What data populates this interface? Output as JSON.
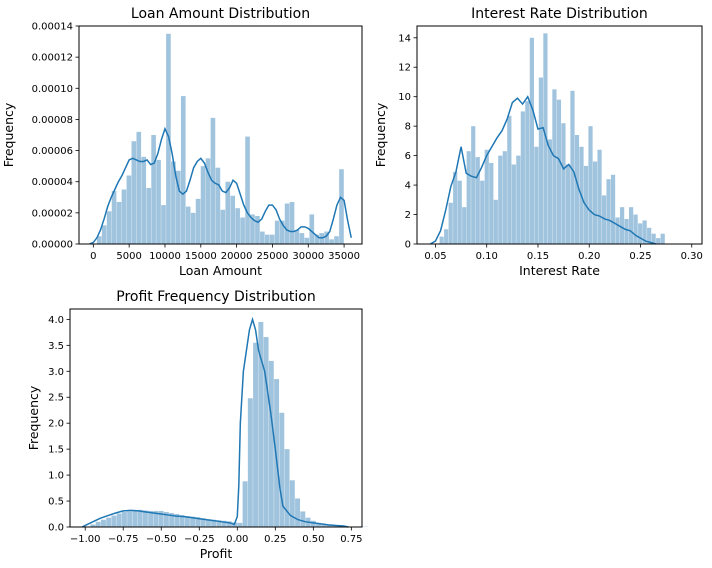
{
  "figure": {
    "background": "#ffffff",
    "hist_color": "#a1c4de",
    "kde_color": "#1f77b4",
    "axes_color": "#000000"
  },
  "chart_data": [
    {
      "type": "bar",
      "title": "Loan Amount Distribution",
      "xlabel": "Loan Amount",
      "ylabel": "Frequency",
      "xlim": [
        -2000,
        37500
      ],
      "ylim": [
        0,
        0.00014
      ],
      "xticks": [
        0,
        5000,
        10000,
        15000,
        20000,
        25000,
        30000,
        35000
      ],
      "xtick_labels": [
        "0",
        "5000",
        "10000",
        "15000",
        "20000",
        "25000",
        "30000",
        "35000"
      ],
      "yticks": [
        0,
        2e-05,
        4e-05,
        6e-05,
        8e-05,
        0.0001,
        0.00012,
        0.00014
      ],
      "ytick_labels": [
        "0.00000",
        "0.00002",
        "0.00004",
        "0.00006",
        "0.00008",
        "0.00010",
        "0.00012",
        "0.00014"
      ],
      "grid": false,
      "hist": {
        "x_start": 500,
        "bin_width": 690,
        "values": [
          5e-06,
          1.2e-05,
          2.1e-05,
          3.4e-05,
          2.7e-05,
          3.5e-05,
          4.4e-05,
          6.6e-05,
          7.2e-05,
          5.6e-05,
          3.6e-05,
          7e-05,
          5.4e-05,
          2.5e-05,
          0.000135,
          5.3e-05,
          4.7e-05,
          9.5e-05,
          2.4e-05,
          2e-05,
          2.9e-05,
          5e-05,
          5.5e-05,
          8.1e-05,
          4.9e-05,
          2.2e-05,
          4e-05,
          3.1e-05,
          2.3e-05,
          1.7e-05,
          6.9e-05,
          1.9e-05,
          1.8e-05,
          8e-06,
          6e-06,
          6e-06,
          1.5e-05,
          1.5e-05,
          2.6e-05,
          2.7e-05,
          9e-06,
          7e-06,
          4e-06,
          1.9e-05,
          6e-06,
          7e-06,
          8e-06,
          3e-06,
          5e-06,
          4.8e-05
        ]
      },
      "kde": {
        "x": [
          -500,
          0,
          500,
          1000,
          1500,
          2000,
          2500,
          3000,
          3500,
          4000,
          4500,
          5000,
          5500,
          6000,
          6500,
          7000,
          7500,
          8000,
          8500,
          9000,
          9500,
          10000,
          10500,
          11000,
          11500,
          12000,
          12500,
          13000,
          13500,
          14000,
          14500,
          15000,
          15500,
          16000,
          16500,
          17000,
          17500,
          18000,
          18500,
          19000,
          19500,
          20000,
          20500,
          21000,
          21500,
          22000,
          22500,
          23000,
          23500,
          24000,
          24500,
          25000,
          25500,
          26000,
          26500,
          27000,
          27500,
          28000,
          28500,
          29000,
          29500,
          30000,
          30500,
          31000,
          31500,
          32000,
          32500,
          33000,
          33500,
          34000,
          34500,
          35000,
          35500,
          36000
        ],
        "y": [
          1e-07,
          1e-06,
          4e-06,
          9e-06,
          1.6e-05,
          2.4e-05,
          3e-05,
          3.5e-05,
          4e-05,
          4.4e-05,
          4.9e-05,
          5.4e-05,
          5.5e-05,
          5.4e-05,
          5.3e-05,
          5.3e-05,
          5.4e-05,
          5.1e-05,
          5.2e-05,
          5.8e-05,
          6.7e-05,
          7.4e-05,
          6.9e-05,
          5.8e-05,
          4.4e-05,
          3.4e-05,
          3.2e-05,
          3.4e-05,
          4.1e-05,
          4.9e-05,
          5.3e-05,
          5.5e-05,
          5.2e-05,
          4.6e-05,
          4.1e-05,
          3.9e-05,
          3.8e-05,
          3.4e-05,
          3.3e-05,
          3.6e-05,
          4.1e-05,
          3.9e-05,
          3.2e-05,
          2.5e-05,
          2e-05,
          1.7e-05,
          1.5e-05,
          1.4e-05,
          1.6e-05,
          2.1e-05,
          2.5e-05,
          2.5e-05,
          2.2e-05,
          1.6e-05,
          1.2e-05,
          9e-06,
          8e-06,
          8e-06,
          9e-06,
          1.1e-05,
          1.1e-05,
          1e-05,
          8e-06,
          6e-06,
          4e-06,
          4e-06,
          5e-06,
          8e-06,
          1.6e-05,
          2.5e-05,
          3e-05,
          2.8e-05,
          1.5e-05,
          4e-06
        ]
      }
    },
    {
      "type": "bar",
      "title": "Interest Rate Distribution",
      "xlabel": "Interest Rate",
      "ylabel": "Frequency",
      "xlim": [
        0.032,
        0.31
      ],
      "ylim": [
        0,
        14.8
      ],
      "xticks": [
        0.05,
        0.1,
        0.15,
        0.2,
        0.25,
        0.3
      ],
      "xtick_labels": [
        "0.05",
        "0.10",
        "0.15",
        "0.20",
        "0.25",
        "0.30"
      ],
      "yticks": [
        0,
        2,
        4,
        6,
        8,
        10,
        12,
        14
      ],
      "ytick_labels": [
        "0",
        "2",
        "4",
        "6",
        "8",
        "10",
        "12",
        "14"
      ],
      "grid": false,
      "hist": {
        "x_start": 0.054,
        "bin_width": 0.0044,
        "values": [
          0.5,
          1.0,
          2.8,
          4.9,
          4.3,
          2.5,
          6.3,
          8.0,
          5.9,
          4.3,
          6.4,
          5.5,
          3.0,
          6.0,
          6.3,
          8.7,
          5.4,
          6.0,
          9.0,
          9.7,
          14.0,
          6.6,
          11.3,
          14.3,
          7.1,
          10.5,
          9.8,
          8.2,
          5.4,
          10.4,
          7.4,
          6.6,
          5.3,
          8.0,
          5.6,
          6.4,
          3.3,
          4.4,
          4.7,
          1.8,
          2.5,
          1.7,
          2.5,
          2.0,
          1.4,
          1.6,
          1.1,
          0.7,
          0.4,
          0.7
        ]
      },
      "kde": {
        "x": [
          0.045,
          0.05,
          0.055,
          0.06,
          0.065,
          0.07,
          0.075,
          0.08,
          0.085,
          0.09,
          0.095,
          0.1,
          0.105,
          0.11,
          0.115,
          0.12,
          0.125,
          0.13,
          0.135,
          0.14,
          0.145,
          0.15,
          0.155,
          0.16,
          0.165,
          0.17,
          0.175,
          0.18,
          0.185,
          0.19,
          0.195,
          0.2,
          0.205,
          0.21,
          0.215,
          0.22,
          0.225,
          0.23,
          0.235,
          0.24,
          0.245,
          0.25,
          0.255,
          0.26,
          0.265
        ],
        "y": [
          0.0,
          0.2,
          0.9,
          2.3,
          3.9,
          4.9,
          6.6,
          4.8,
          4.6,
          4.5,
          5.2,
          6.0,
          6.6,
          7.2,
          7.7,
          8.5,
          9.6,
          9.9,
          9.5,
          10.0,
          9.1,
          7.8,
          7.9,
          6.7,
          6.0,
          5.8,
          5.1,
          5.4,
          4.9,
          3.7,
          2.8,
          2.3,
          2.0,
          1.9,
          1.7,
          1.6,
          1.4,
          1.2,
          1.0,
          0.9,
          0.6,
          0.4,
          0.2,
          0.1,
          0.0
        ]
      }
    },
    {
      "type": "bar",
      "title": "Profit Frequency Distribution",
      "xlabel": "Profit",
      "ylabel": "Frequency",
      "xlim": [
        -1.1,
        0.82
      ],
      "ylim": [
        0,
        4.2
      ],
      "xticks": [
        -1.0,
        -0.75,
        -0.5,
        -0.25,
        0.0,
        0.25,
        0.5,
        0.75
      ],
      "xtick_labels": [
        "−1.00",
        "−0.75",
        "−0.50",
        "−0.25",
        "0.00",
        "0.25",
        "0.50",
        "0.75"
      ],
      "yticks": [
        0,
        0.5,
        1.0,
        1.5,
        2.0,
        2.5,
        3.0,
        3.5,
        4.0
      ],
      "ytick_labels": [
        "0.0",
        "0.5",
        "1.0",
        "1.5",
        "2.0",
        "2.5",
        "3.0",
        "3.5",
        "4.0"
      ],
      "grid": false,
      "hist": {
        "x_start": -1.0,
        "bin_width": 0.0345,
        "values": [
          0.01,
          0.05,
          0.1,
          0.14,
          0.18,
          0.22,
          0.26,
          0.29,
          0.3,
          0.32,
          0.33,
          0.32,
          0.31,
          0.31,
          0.31,
          0.29,
          0.27,
          0.25,
          0.23,
          0.21,
          0.2,
          0.19,
          0.17,
          0.15,
          0.14,
          0.13,
          0.12,
          0.11,
          0.09,
          0.08,
          0.88,
          2.48,
          3.55,
          3.95,
          3.66,
          3.2,
          2.85,
          2.2,
          1.5,
          0.9,
          0.55,
          0.3,
          0.18,
          0.12,
          0.08,
          0.05,
          0.04,
          0.03,
          0.02,
          0.02,
          0.01,
          0.01,
          0.01,
          0.005
        ]
      },
      "kde": {
        "x": [
          -1.02,
          -1.0,
          -0.95,
          -0.9,
          -0.85,
          -0.8,
          -0.75,
          -0.7,
          -0.65,
          -0.6,
          -0.55,
          -0.5,
          -0.45,
          -0.4,
          -0.35,
          -0.3,
          -0.25,
          -0.2,
          -0.15,
          -0.1,
          -0.05,
          -0.02,
          0.0,
          0.01,
          0.02,
          0.04,
          0.06,
          0.08,
          0.1,
          0.12,
          0.14,
          0.16,
          0.18,
          0.2,
          0.22,
          0.25,
          0.28,
          0.3,
          0.35,
          0.4,
          0.45,
          0.5,
          0.55,
          0.6,
          0.65,
          0.7,
          0.73
        ],
        "y": [
          0.0,
          0.03,
          0.1,
          0.17,
          0.22,
          0.27,
          0.31,
          0.32,
          0.31,
          0.29,
          0.27,
          0.25,
          0.23,
          0.21,
          0.2,
          0.18,
          0.16,
          0.14,
          0.12,
          0.1,
          0.08,
          0.05,
          0.2,
          0.8,
          2.0,
          3.0,
          3.4,
          3.8,
          4.0,
          3.8,
          3.4,
          3.2,
          3.0,
          2.6,
          2.2,
          1.5,
          0.75,
          0.4,
          0.22,
          0.14,
          0.1,
          0.08,
          0.06,
          0.04,
          0.03,
          0.02,
          0.0
        ]
      }
    }
  ]
}
